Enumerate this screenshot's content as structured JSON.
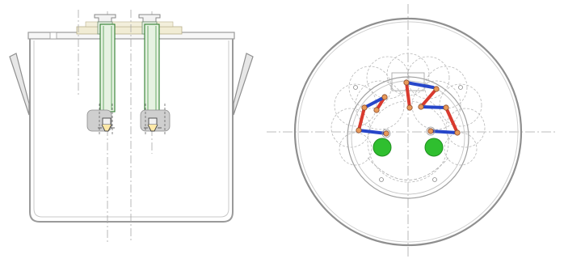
{
  "drawing": {
    "views": [
      "side-section-view",
      "top-plan-view"
    ],
    "colors": {
      "background": "#ffffff",
      "outline": "#9a9a9a",
      "outline_dark": "#777777",
      "centerline": "#a8a8a8",
      "construction": "#b8b8b8",
      "tube_fill": "#e6f2e2",
      "tube_stroke": "#2f7d2f",
      "flange_fill": "#f1ecd4",
      "block_fill": "#cfcfcf",
      "handle_fill": "#e7e7e7",
      "link_red": "#d93a2e",
      "link_blue": "#2746c9",
      "joint_fill": "#e89a5a",
      "port_green": "#2fbf2f"
    }
  }
}
